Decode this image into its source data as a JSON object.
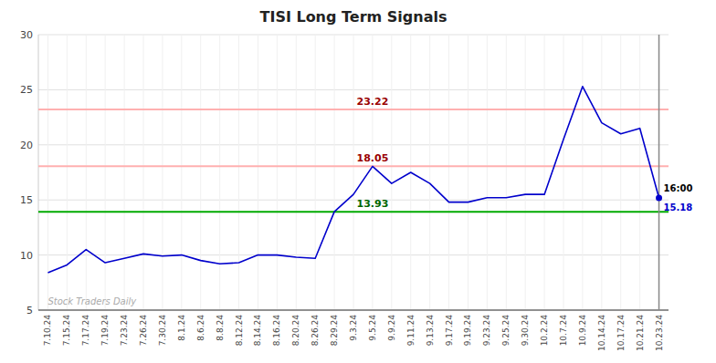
{
  "chart_data": {
    "type": "line",
    "title": "TISI Long Term Signals",
    "categories": [
      "7.10.24",
      "7.15.24",
      "7.17.24",
      "7.19.24",
      "7.23.24",
      "7.26.24",
      "7.30.24",
      "8.1.24",
      "8.6.24",
      "8.8.24",
      "8.12.24",
      "8.14.24",
      "8.16.24",
      "8.20.24",
      "8.26.24",
      "8.29.24",
      "9.3.24",
      "9.5.24",
      "9.9.24",
      "9.11.24",
      "9.13.24",
      "9.17.24",
      "9.19.24",
      "9.23.24",
      "9.25.24",
      "9.30.24",
      "10.2.24",
      "10.7.24",
      "10.9.24",
      "10.14.24",
      "10.17.24",
      "10.21.24",
      "10.23.24"
    ],
    "values": [
      8.4,
      9.1,
      10.5,
      9.3,
      9.7,
      10.1,
      9.9,
      10.0,
      9.5,
      9.2,
      9.3,
      10.0,
      10.0,
      9.8,
      9.7,
      13.93,
      15.5,
      18.05,
      16.5,
      17.5,
      16.5,
      14.8,
      14.8,
      15.2,
      15.2,
      15.5,
      15.5,
      20.5,
      25.3,
      22.0,
      21.0,
      21.5,
      15.18
    ],
    "color": "#0000cc",
    "hlines": [
      {
        "value": 13.93,
        "label": "13.93",
        "color": "#00aa00",
        "label_color": "#006600"
      },
      {
        "value": 18.05,
        "label": "18.05",
        "color": "#ffb0b0",
        "label_color": "#990000"
      },
      {
        "value": 23.22,
        "label": "23.22",
        "color": "#ffb0b0",
        "label_color": "#990000"
      }
    ],
    "last_point": {
      "time_label": "16:00",
      "value_label": "15.18"
    },
    "watermark": "Stock Traders Daily",
    "ylim": [
      5,
      30
    ],
    "yticks": [
      5,
      10,
      15,
      20,
      25,
      30
    ],
    "grid": true
  }
}
